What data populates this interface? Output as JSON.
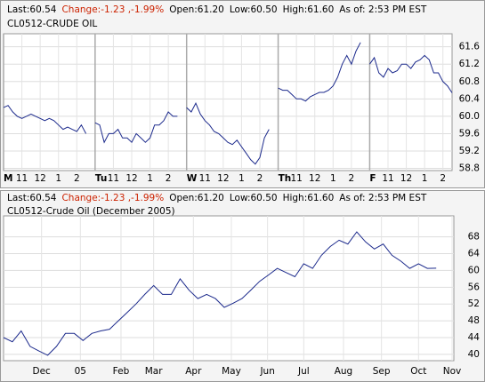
{
  "chart_data": [
    {
      "type": "line",
      "header": [
        {
          "text": "Last:60.54",
          "color": "#000000"
        },
        {
          "text": "Change:-1.23 ,-1.99%",
          "color": "#cc2200"
        },
        {
          "text": "Open:61.20",
          "color": "#000000"
        },
        {
          "text": "Low:60.50",
          "color": "#000000"
        },
        {
          "text": "High:61.60",
          "color": "#000000"
        },
        {
          "text": "As of: 2:53 PM EST",
          "color": "#000000"
        }
      ],
      "title": "CL0512-CRUDE OIL",
      "color": "#1c2a8c",
      "values": [
        60.2,
        60.25,
        60.1,
        60.0,
        59.95,
        60.0,
        60.05,
        60.0,
        59.95,
        59.9,
        59.95,
        59.9,
        59.8,
        59.7,
        59.75,
        59.7,
        59.65,
        59.8,
        59.6,
        null,
        59.85,
        59.8,
        59.4,
        59.6,
        59.6,
        59.7,
        59.5,
        59.5,
        59.4,
        59.6,
        59.5,
        59.4,
        59.5,
        59.8,
        59.8,
        59.9,
        60.1,
        60.0,
        60.0,
        null,
        60.2,
        60.1,
        60.3,
        60.05,
        59.9,
        59.8,
        59.65,
        59.6,
        59.5,
        59.4,
        59.35,
        59.45,
        59.3,
        59.15,
        59.0,
        58.9,
        59.05,
        59.5,
        59.7,
        null,
        60.65,
        60.6,
        60.6,
        60.5,
        60.4,
        60.4,
        60.35,
        60.45,
        60.5,
        60.55,
        60.55,
        60.6,
        60.7,
        60.9,
        61.2,
        61.4,
        61.2,
        61.5,
        61.7,
        null,
        61.2,
        61.35,
        61.0,
        60.9,
        61.1,
        61.0,
        61.05,
        61.2,
        61.2,
        61.1,
        61.25,
        61.3,
        61.4,
        61.3,
        61.0,
        61.0,
        60.8,
        60.7,
        60.54
      ],
      "xlim": [
        0,
        98
      ],
      "xticks": [
        {
          "value": 0,
          "label": "M"
        },
        {
          "value": 4,
          "label": "11"
        },
        {
          "value": 8,
          "label": "12"
        },
        {
          "value": 12,
          "label": "1"
        },
        {
          "value": 16,
          "label": "2"
        },
        {
          "value": 20,
          "label": "Tu"
        },
        {
          "value": 24,
          "label": "11"
        },
        {
          "value": 28,
          "label": "12"
        },
        {
          "value": 32,
          "label": "1"
        },
        {
          "value": 36,
          "label": "2"
        },
        {
          "value": 40,
          "label": "W"
        },
        {
          "value": 44,
          "label": "11"
        },
        {
          "value": 48,
          "label": "12"
        },
        {
          "value": 52,
          "label": "1"
        },
        {
          "value": 56,
          "label": "2"
        },
        {
          "value": 60,
          "label": "Th"
        },
        {
          "value": 64,
          "label": "11"
        },
        {
          "value": 68,
          "label": "12"
        },
        {
          "value": 72,
          "label": "1"
        },
        {
          "value": 76,
          "label": "2"
        },
        {
          "value": 80,
          "label": "F"
        },
        {
          "value": 84,
          "label": "11"
        },
        {
          "value": 88,
          "label": "12"
        },
        {
          "value": 92,
          "label": "1"
        },
        {
          "value": 96,
          "label": "2"
        }
      ],
      "ylim": [
        58.75,
        61.9
      ],
      "yticks": [
        61.6,
        61.2,
        60.8,
        60.4,
        {
          "value": 60,
          "label": "60.0"
        },
        59.6,
        59.2,
        58.8
      ],
      "grid": true
    },
    {
      "type": "line",
      "header": [
        {
          "text": "Last:60.54",
          "color": "#000000"
        },
        {
          "text": "Change:-1.23 ,-1.99%",
          "color": "#cc2200"
        },
        {
          "text": "Open:61.20",
          "color": "#000000"
        },
        {
          "text": "Low:60.50",
          "color": "#000000"
        },
        {
          "text": "High:61.60",
          "color": "#000000"
        },
        {
          "text": "As of: 2:53 PM EST",
          "color": "#000000"
        }
      ],
      "title": "CL0512-Crude Oil (December 2005)",
      "color": "#1c2a8c",
      "values": [
        44,
        43,
        45.6,
        41.9,
        40.8,
        39.8,
        41.9,
        45,
        45,
        43.3,
        45,
        45.6,
        46,
        48,
        50,
        52,
        54.3,
        56.4,
        54.3,
        54.3,
        58,
        55.3,
        53.3,
        54.3,
        53.3,
        51.2,
        52.2,
        53.3,
        55.3,
        57.4,
        58.9,
        60.5,
        59.5,
        58.5,
        61.6,
        60.5,
        63.6,
        65.7,
        67.2,
        66.3,
        69.2,
        66.8,
        65.1,
        66.3,
        63.6,
        62.2,
        60.5,
        61.6,
        60.5,
        60.54
      ],
      "xlim": [
        0,
        51
      ],
      "xticks": [
        {
          "value": 4.3,
          "label": "Dec"
        },
        {
          "value": 8.7,
          "label": "05"
        },
        {
          "value": 13.3,
          "label": "Feb"
        },
        {
          "value": 17,
          "label": "Mar"
        },
        {
          "value": 21.5,
          "label": "Apr"
        },
        {
          "value": 25.8,
          "label": "May"
        },
        {
          "value": 29.9,
          "label": "Jun"
        },
        {
          "value": 34,
          "label": "Jul"
        },
        {
          "value": 38.5,
          "label": "Aug"
        },
        {
          "value": 42.8,
          "label": "Sep"
        },
        {
          "value": 47,
          "label": "Oct"
        },
        {
          "value": 50.8,
          "label": "Nov"
        }
      ],
      "ylim": [
        38.5,
        73
      ],
      "yticks": [
        68,
        64,
        60,
        56,
        52,
        48,
        44,
        40
      ],
      "grid": true
    }
  ]
}
